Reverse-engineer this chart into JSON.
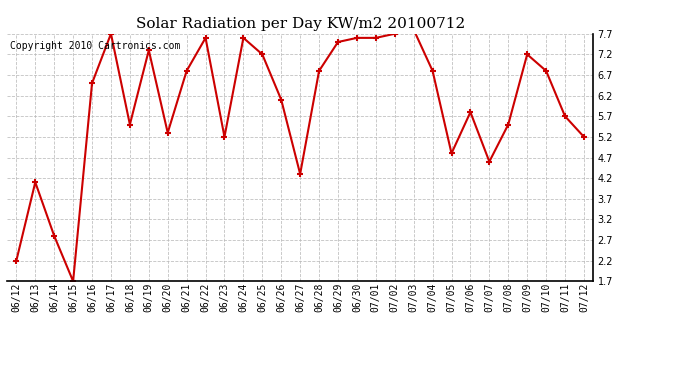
{
  "title": "Solar Radiation per Day KW/m2 20100712",
  "copyright": "Copyright 2010 Cartronics.com",
  "dates": [
    "06/12",
    "06/13",
    "06/14",
    "06/15",
    "06/16",
    "06/17",
    "06/18",
    "06/19",
    "06/20",
    "06/21",
    "06/22",
    "06/23",
    "06/24",
    "06/25",
    "06/26",
    "06/27",
    "06/28",
    "06/29",
    "06/30",
    "07/01",
    "07/02",
    "07/03",
    "07/04",
    "07/05",
    "07/06",
    "07/07",
    "07/08",
    "07/09",
    "07/10",
    "07/11",
    "07/12"
  ],
  "values": [
    2.2,
    4.1,
    2.8,
    1.7,
    6.5,
    7.7,
    5.5,
    7.3,
    5.3,
    6.8,
    7.6,
    5.2,
    7.6,
    7.2,
    6.1,
    4.3,
    6.8,
    7.5,
    7.6,
    7.6,
    7.7,
    7.8,
    6.8,
    4.8,
    5.8,
    4.6,
    5.5,
    7.2,
    6.8,
    5.7,
    5.2
  ],
  "line_color": "#cc0000",
  "marker_color": "#cc0000",
  "bg_color": "#ffffff",
  "plot_bg_color": "#ffffff",
  "grid_color": "#bbbbbb",
  "ylim": [
    1.7,
    7.7
  ],
  "yticks": [
    1.7,
    2.2,
    2.7,
    3.2,
    3.7,
    4.2,
    4.7,
    5.2,
    5.7,
    6.2,
    6.7,
    7.2,
    7.7
  ],
  "title_fontsize": 11,
  "copyright_fontsize": 7,
  "tick_fontsize": 7
}
